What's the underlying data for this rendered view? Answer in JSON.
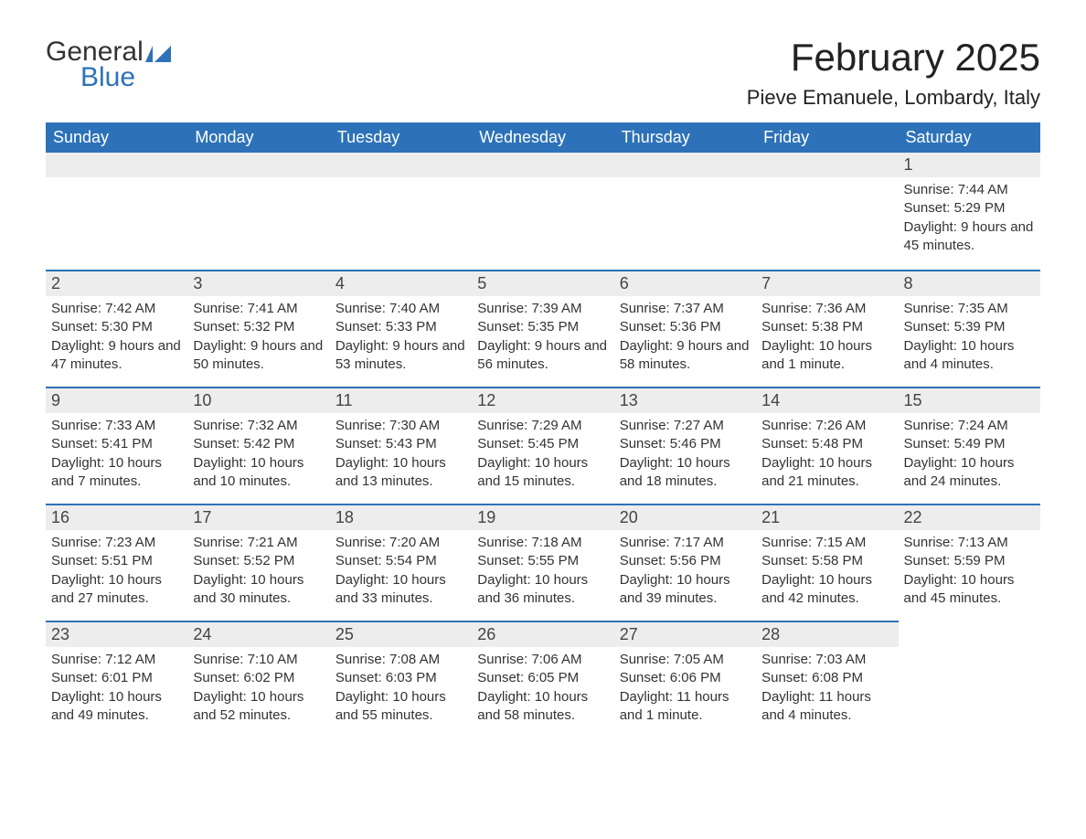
{
  "brand": {
    "word1": "General",
    "word2": "Blue",
    "flag_color": "#2d72b8",
    "text_color_dark": "#333333"
  },
  "header": {
    "month_title": "February 2025",
    "location": "Pieve Emanuele, Lombardy, Italy"
  },
  "colors": {
    "header_bg": "#2d72b8",
    "header_fg": "#ffffff",
    "daynum_bg": "#ededed",
    "daynum_border": "#2d72b8",
    "page_bg": "#ffffff",
    "body_text": "#333333"
  },
  "typography": {
    "month_title_fontsize": 42,
    "location_fontsize": 22,
    "weekday_fontsize": 18,
    "daynum_fontsize": 18,
    "details_fontsize": 15
  },
  "weekdays": [
    "Sunday",
    "Monday",
    "Tuesday",
    "Wednesday",
    "Thursday",
    "Friday",
    "Saturday"
  ],
  "labels": {
    "sunrise": "Sunrise:",
    "sunset": "Sunset:",
    "daylight": "Daylight:"
  },
  "weeks": [
    [
      null,
      null,
      null,
      null,
      null,
      null,
      {
        "num": "1",
        "sunrise": "7:44 AM",
        "sunset": "5:29 PM",
        "daylight": "9 hours and 45 minutes."
      }
    ],
    [
      {
        "num": "2",
        "sunrise": "7:42 AM",
        "sunset": "5:30 PM",
        "daylight": "9 hours and 47 minutes."
      },
      {
        "num": "3",
        "sunrise": "7:41 AM",
        "sunset": "5:32 PM",
        "daylight": "9 hours and 50 minutes."
      },
      {
        "num": "4",
        "sunrise": "7:40 AM",
        "sunset": "5:33 PM",
        "daylight": "9 hours and 53 minutes."
      },
      {
        "num": "5",
        "sunrise": "7:39 AM",
        "sunset": "5:35 PM",
        "daylight": "9 hours and 56 minutes."
      },
      {
        "num": "6",
        "sunrise": "7:37 AM",
        "sunset": "5:36 PM",
        "daylight": "9 hours and 58 minutes."
      },
      {
        "num": "7",
        "sunrise": "7:36 AM",
        "sunset": "5:38 PM",
        "daylight": "10 hours and 1 minute."
      },
      {
        "num": "8",
        "sunrise": "7:35 AM",
        "sunset": "5:39 PM",
        "daylight": "10 hours and 4 minutes."
      }
    ],
    [
      {
        "num": "9",
        "sunrise": "7:33 AM",
        "sunset": "5:41 PM",
        "daylight": "10 hours and 7 minutes."
      },
      {
        "num": "10",
        "sunrise": "7:32 AM",
        "sunset": "5:42 PM",
        "daylight": "10 hours and 10 minutes."
      },
      {
        "num": "11",
        "sunrise": "7:30 AM",
        "sunset": "5:43 PM",
        "daylight": "10 hours and 13 minutes."
      },
      {
        "num": "12",
        "sunrise": "7:29 AM",
        "sunset": "5:45 PM",
        "daylight": "10 hours and 15 minutes."
      },
      {
        "num": "13",
        "sunrise": "7:27 AM",
        "sunset": "5:46 PM",
        "daylight": "10 hours and 18 minutes."
      },
      {
        "num": "14",
        "sunrise": "7:26 AM",
        "sunset": "5:48 PM",
        "daylight": "10 hours and 21 minutes."
      },
      {
        "num": "15",
        "sunrise": "7:24 AM",
        "sunset": "5:49 PM",
        "daylight": "10 hours and 24 minutes."
      }
    ],
    [
      {
        "num": "16",
        "sunrise": "7:23 AM",
        "sunset": "5:51 PM",
        "daylight": "10 hours and 27 minutes."
      },
      {
        "num": "17",
        "sunrise": "7:21 AM",
        "sunset": "5:52 PM",
        "daylight": "10 hours and 30 minutes."
      },
      {
        "num": "18",
        "sunrise": "7:20 AM",
        "sunset": "5:54 PM",
        "daylight": "10 hours and 33 minutes."
      },
      {
        "num": "19",
        "sunrise": "7:18 AM",
        "sunset": "5:55 PM",
        "daylight": "10 hours and 36 minutes."
      },
      {
        "num": "20",
        "sunrise": "7:17 AM",
        "sunset": "5:56 PM",
        "daylight": "10 hours and 39 minutes."
      },
      {
        "num": "21",
        "sunrise": "7:15 AM",
        "sunset": "5:58 PM",
        "daylight": "10 hours and 42 minutes."
      },
      {
        "num": "22",
        "sunrise": "7:13 AM",
        "sunset": "5:59 PM",
        "daylight": "10 hours and 45 minutes."
      }
    ],
    [
      {
        "num": "23",
        "sunrise": "7:12 AM",
        "sunset": "6:01 PM",
        "daylight": "10 hours and 49 minutes."
      },
      {
        "num": "24",
        "sunrise": "7:10 AM",
        "sunset": "6:02 PM",
        "daylight": "10 hours and 52 minutes."
      },
      {
        "num": "25",
        "sunrise": "7:08 AM",
        "sunset": "6:03 PM",
        "daylight": "10 hours and 55 minutes."
      },
      {
        "num": "26",
        "sunrise": "7:06 AM",
        "sunset": "6:05 PM",
        "daylight": "10 hours and 58 minutes."
      },
      {
        "num": "27",
        "sunrise": "7:05 AM",
        "sunset": "6:06 PM",
        "daylight": "11 hours and 1 minute."
      },
      {
        "num": "28",
        "sunrise": "7:03 AM",
        "sunset": "6:08 PM",
        "daylight": "11 hours and 4 minutes."
      },
      null
    ]
  ]
}
